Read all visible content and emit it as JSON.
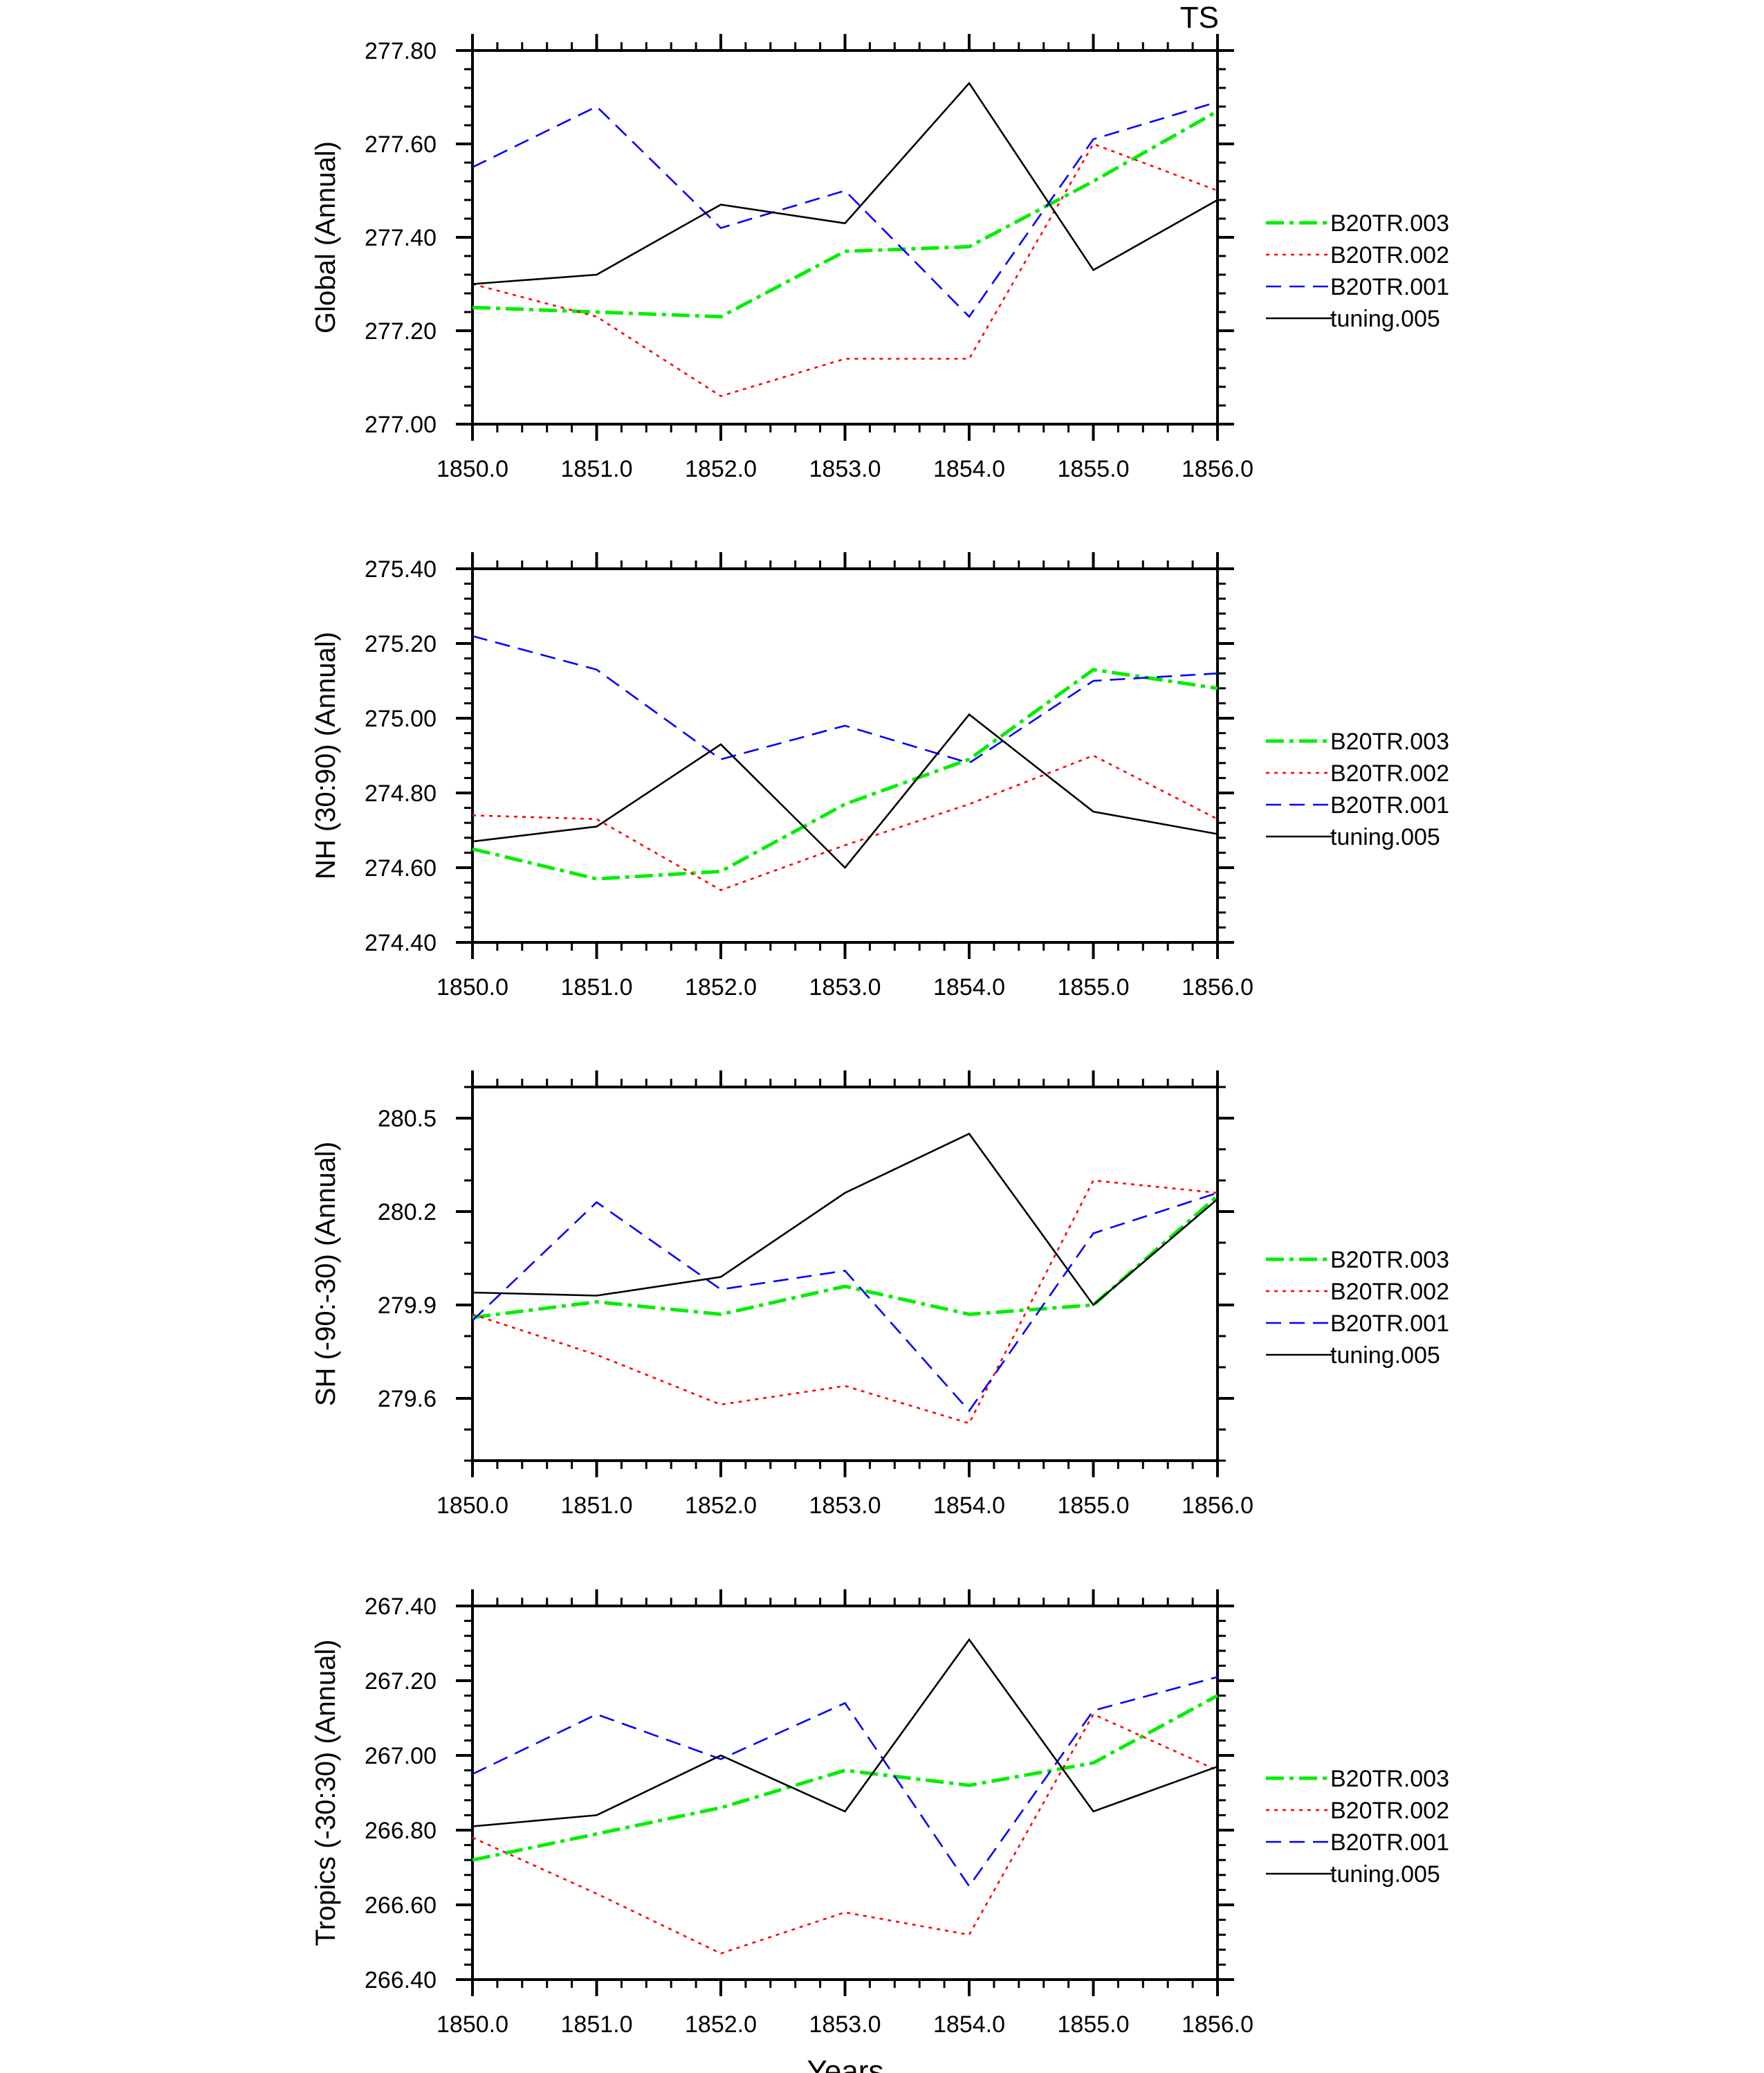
{
  "figure": {
    "title": "TS",
    "xlabel": "Years"
  },
  "series_style": {
    "B20TR.003": {
      "color": "#00ee00",
      "dash": "dashdot"
    },
    "B20TR.002": {
      "color": "#ff0000",
      "dash": "dotted"
    },
    "B20TR.001": {
      "color": "#0000ff",
      "dash": "dashed"
    },
    "tuning.005": {
      "color": "#000000",
      "dash": "solid"
    }
  },
  "chart_data": [
    {
      "type": "line",
      "title": "TS",
      "ylabel": "Global (Annual)",
      "xlabel": "",
      "x": [
        1850,
        1851,
        1852,
        1853,
        1854,
        1855,
        1856
      ],
      "xtick_labels": [
        "1850.0",
        "1851.0",
        "1852.0",
        "1853.0",
        "1854.0",
        "1855.0",
        "1856.0"
      ],
      "ylim": [
        277.0,
        277.8
      ],
      "yticks": [
        277.0,
        277.2,
        277.4,
        277.6,
        277.8
      ],
      "ytick_labels": [
        "277.00",
        "277.20",
        "277.40",
        "277.60",
        "277.80"
      ],
      "yminor_step": 0.04,
      "series": [
        {
          "name": "B20TR.003",
          "values": [
            277.25,
            277.24,
            277.23,
            277.37,
            277.38,
            277.52,
            277.67
          ]
        },
        {
          "name": "B20TR.002",
          "values": [
            277.3,
            277.23,
            277.06,
            277.14,
            277.14,
            277.6,
            277.5
          ]
        },
        {
          "name": "B20TR.001",
          "values": [
            277.55,
            277.68,
            277.42,
            277.5,
            277.23,
            277.61,
            277.69
          ]
        },
        {
          "name": "tuning.005",
          "values": [
            277.3,
            277.32,
            277.47,
            277.43,
            277.73,
            277.33,
            277.48
          ]
        }
      ],
      "legend": [
        "B20TR.003",
        "B20TR.002",
        "B20TR.001",
        "tuning.005"
      ]
    },
    {
      "type": "line",
      "ylabel": "NH (30:90) (Annual)",
      "xlabel": "",
      "x": [
        1850,
        1851,
        1852,
        1853,
        1854,
        1855,
        1856
      ],
      "xtick_labels": [
        "1850.0",
        "1851.0",
        "1852.0",
        "1853.0",
        "1854.0",
        "1855.0",
        "1856.0"
      ],
      "ylim": [
        274.4,
        275.4
      ],
      "yticks": [
        274.4,
        274.6,
        274.8,
        275.0,
        275.2,
        275.4
      ],
      "ytick_labels": [
        "274.40",
        "274.60",
        "274.80",
        "275.00",
        "275.20",
        "275.40"
      ],
      "yminor_step": 0.04,
      "series": [
        {
          "name": "B20TR.003",
          "values": [
            274.65,
            274.57,
            274.59,
            274.77,
            274.89,
            275.13,
            275.08
          ]
        },
        {
          "name": "B20TR.002",
          "values": [
            274.74,
            274.73,
            274.54,
            274.66,
            274.77,
            274.9,
            274.73
          ]
        },
        {
          "name": "B20TR.001",
          "values": [
            275.22,
            275.13,
            274.89,
            274.98,
            274.88,
            275.1,
            275.12
          ]
        },
        {
          "name": "tuning.005",
          "values": [
            274.67,
            274.71,
            274.93,
            274.6,
            275.01,
            274.75,
            274.69
          ]
        }
      ],
      "legend": [
        "B20TR.003",
        "B20TR.002",
        "B20TR.001",
        "tuning.005"
      ]
    },
    {
      "type": "line",
      "ylabel": "SH (-90:-30) (Annual)",
      "xlabel": "",
      "x": [
        1850,
        1851,
        1852,
        1853,
        1854,
        1855,
        1856
      ],
      "xtick_labels": [
        "1850.0",
        "1851.0",
        "1852.0",
        "1853.0",
        "1854.0",
        "1855.0",
        "1856.0"
      ],
      "ylim": [
        279.4,
        280.6
      ],
      "yticks": [
        279.6,
        279.9,
        280.2,
        280.5
      ],
      "ytick_labels": [
        "279.6",
        "279.9",
        "280.2",
        "280.5"
      ],
      "yminor_step": 0.1,
      "series": [
        {
          "name": "B20TR.003",
          "values": [
            279.86,
            279.91,
            279.87,
            279.96,
            279.87,
            279.9,
            280.25
          ]
        },
        {
          "name": "B20TR.002",
          "values": [
            279.87,
            279.74,
            279.58,
            279.64,
            279.52,
            280.3,
            280.26
          ]
        },
        {
          "name": "B20TR.001",
          "values": [
            279.85,
            280.23,
            279.95,
            280.01,
            279.56,
            280.13,
            280.26
          ]
        },
        {
          "name": "tuning.005",
          "values": [
            279.94,
            279.93,
            279.99,
            280.26,
            280.45,
            279.9,
            280.24
          ]
        }
      ],
      "legend": [
        "B20TR.003",
        "B20TR.002",
        "B20TR.001",
        "tuning.005"
      ]
    },
    {
      "type": "line",
      "ylabel": "Tropics (-30:30) (Annual)",
      "xlabel": "Years",
      "x": [
        1850,
        1851,
        1852,
        1853,
        1854,
        1855,
        1856
      ],
      "xtick_labels": [
        "1850.0",
        "1851.0",
        "1852.0",
        "1853.0",
        "1854.0",
        "1855.0",
        "1856.0"
      ],
      "ylim": [
        266.4,
        267.4
      ],
      "yticks": [
        266.4,
        266.6,
        266.8,
        267.0,
        267.2,
        267.4
      ],
      "ytick_labels": [
        "266.40",
        "266.60",
        "266.80",
        "267.00",
        "267.20",
        "267.40"
      ],
      "yminor_step": 0.04,
      "series": [
        {
          "name": "B20TR.003",
          "values": [
            266.72,
            266.79,
            266.86,
            266.96,
            266.92,
            266.98,
            267.16
          ]
        },
        {
          "name": "B20TR.002",
          "values": [
            266.78,
            266.63,
            266.47,
            266.58,
            266.52,
            267.11,
            266.96
          ]
        },
        {
          "name": "B20TR.001",
          "values": [
            266.95,
            267.11,
            266.99,
            267.14,
            266.65,
            267.12,
            267.21
          ]
        },
        {
          "name": "tuning.005",
          "values": [
            266.81,
            266.84,
            267.0,
            266.85,
            267.31,
            266.85,
            266.97
          ]
        }
      ],
      "legend": [
        "B20TR.003",
        "B20TR.002",
        "B20TR.001",
        "tuning.005"
      ]
    }
  ]
}
